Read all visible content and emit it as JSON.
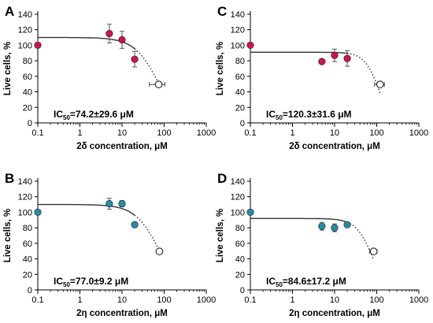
{
  "colors": {
    "filled_red": "#c7174f",
    "filled_teal": "#2a8aa0",
    "axis": "#000000",
    "curve": "#333333"
  },
  "chart_data": [
    {
      "type": "scatter",
      "panel": "A",
      "xlabel": "2δ concentration, μM",
      "ylabel": "Live cells, %",
      "x_scale": "log",
      "xlim": [
        0.1,
        1000
      ],
      "ylim": [
        0,
        140
      ],
      "xticks": [
        "0.1",
        "1",
        "10",
        "100",
        "1000"
      ],
      "yticks": [
        "0",
        "20",
        "40",
        "60",
        "80",
        "100",
        "120",
        "140"
      ],
      "point_color": "filled_red",
      "points": [
        {
          "x": 0.1,
          "y": 100,
          "err": 0
        },
        {
          "x": 5,
          "y": 115,
          "err": 12
        },
        {
          "x": 10,
          "y": 107,
          "err": 11
        },
        {
          "x": 20,
          "y": 82,
          "err": 10
        }
      ],
      "ic50_point": {
        "x": 74.2,
        "y": 49.5,
        "xerr": 29.6
      },
      "fit": {
        "top": 110,
        "bottom": -8,
        "ic50": 74.2,
        "hill": 1.5,
        "solid_until": 20
      },
      "annotation": {
        "prefix": "IC",
        "sub": "50",
        "value": "=74.2±29.6 μM"
      }
    },
    {
      "type": "scatter",
      "panel": "C",
      "xlabel": "2δ concentration, μM",
      "ylabel": "Live cells, %",
      "x_scale": "log",
      "xlim": [
        0.1,
        1000
      ],
      "ylim": [
        0,
        140
      ],
      "xticks": [
        "0.1",
        "1",
        "10",
        "100",
        "1000"
      ],
      "yticks": [
        "0",
        "20",
        "40",
        "60",
        "80",
        "100",
        "120",
        "140"
      ],
      "point_color": "filled_red",
      "points": [
        {
          "x": 0.1,
          "y": 100,
          "err": 0
        },
        {
          "x": 5,
          "y": 79,
          "err": 0
        },
        {
          "x": 10,
          "y": 87,
          "err": 8
        },
        {
          "x": 20,
          "y": 83,
          "err": 10
        }
      ],
      "ic50_point": {
        "x": 120.3,
        "y": 49.5,
        "xerr": 31.6
      },
      "fit": {
        "top": 91,
        "bottom": -14,
        "ic50": 120.3,
        "hill": 2.4,
        "solid_until": 20
      },
      "annotation": {
        "prefix": "IC",
        "sub": "50",
        "value": "=120.3±31.6 μM"
      }
    },
    {
      "type": "scatter",
      "panel": "B",
      "xlabel": "2η concentration, μM",
      "ylabel": "Live cells, %",
      "x_scale": "log",
      "xlim": [
        0.1,
        1000
      ],
      "ylim": [
        0,
        140
      ],
      "xticks": [
        "0.1",
        "1",
        "10",
        "100",
        "1000"
      ],
      "yticks": [
        "0",
        "20",
        "40",
        "60",
        "80",
        "100",
        "120",
        "140"
      ],
      "point_color": "filled_teal",
      "points": [
        {
          "x": 0.1,
          "y": 100,
          "err": 0
        },
        {
          "x": 5,
          "y": 111,
          "err": 7
        },
        {
          "x": 10,
          "y": 111,
          "err": 4
        },
        {
          "x": 20,
          "y": 84,
          "err": 3
        }
      ],
      "ic50_point": {
        "x": 77.0,
        "y": 49.5,
        "xerr": 9.2
      },
      "fit": {
        "top": 110,
        "bottom": -8,
        "ic50": 77.0,
        "hill": 1.5,
        "solid_until": 20
      },
      "annotation": {
        "prefix": "IC",
        "sub": "50",
        "value": "=77.0±9.2 μM"
      }
    },
    {
      "type": "scatter",
      "panel": "D",
      "xlabel": "2η concentration, μM",
      "ylabel": "Live cells, %",
      "x_scale": "log",
      "xlim": [
        0.1,
        1000
      ],
      "ylim": [
        0,
        140
      ],
      "xticks": [
        "0.1",
        "1",
        "10",
        "100",
        "1000"
      ],
      "yticks": [
        "0",
        "20",
        "40",
        "60",
        "80",
        "100",
        "120",
        "140"
      ],
      "point_color": "filled_teal",
      "points": [
        {
          "x": 0.1,
          "y": 100,
          "err": 0
        },
        {
          "x": 5,
          "y": 82,
          "err": 5
        },
        {
          "x": 10,
          "y": 80,
          "err": 5
        },
        {
          "x": 20,
          "y": 84,
          "err": 2
        }
      ],
      "ic50_point": {
        "x": 84.6,
        "y": 49.5,
        "xerr": 17.2
      },
      "fit": {
        "top": 92,
        "bottom": -14,
        "ic50": 84.6,
        "hill": 2.1,
        "solid_until": 20
      },
      "annotation": {
        "prefix": "IC",
        "sub": "50",
        "value": "=84.6±17.2 μM"
      }
    }
  ]
}
